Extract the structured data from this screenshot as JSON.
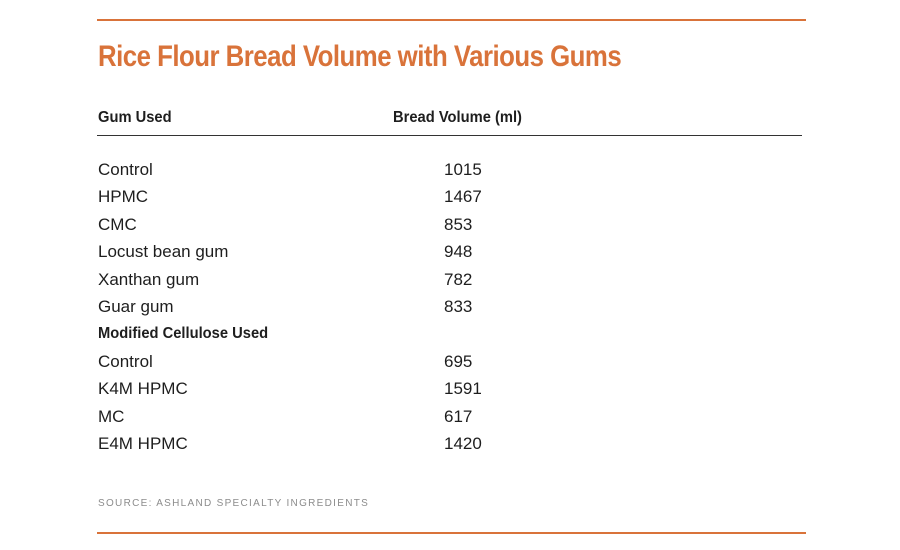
{
  "chart_data": {
    "type": "table",
    "title": "Rice Flour Bread Volume with Various Gums",
    "columns": [
      "Gum Used",
      "Bread Volume (ml)"
    ],
    "groups": [
      {
        "heading": "",
        "rows": [
          {
            "name": "Control",
            "value": 1015
          },
          {
            "name": "HPMC",
            "value": 1467
          },
          {
            "name": "CMC",
            "value": 853
          },
          {
            "name": "Locust bean gum",
            "value": 948
          },
          {
            "name": "Xanthan gum",
            "value": 782
          },
          {
            "name": "Guar gum",
            "value": 833
          }
        ]
      },
      {
        "heading": "Modified Cellulose Used",
        "rows": [
          {
            "name": "Control",
            "value": 695
          },
          {
            "name": "K4M HPMC",
            "value": 1591
          },
          {
            "name": "MC",
            "value": 617
          },
          {
            "name": "E4M HPMC",
            "value": 1420
          }
        ]
      }
    ],
    "source": "SOURCE: ASHLAND SPECIALTY INGREDIENTS"
  },
  "colors": {
    "accent": "#d9733a",
    "text": "#1e1e1e",
    "source_text": "#8c8c8c"
  }
}
